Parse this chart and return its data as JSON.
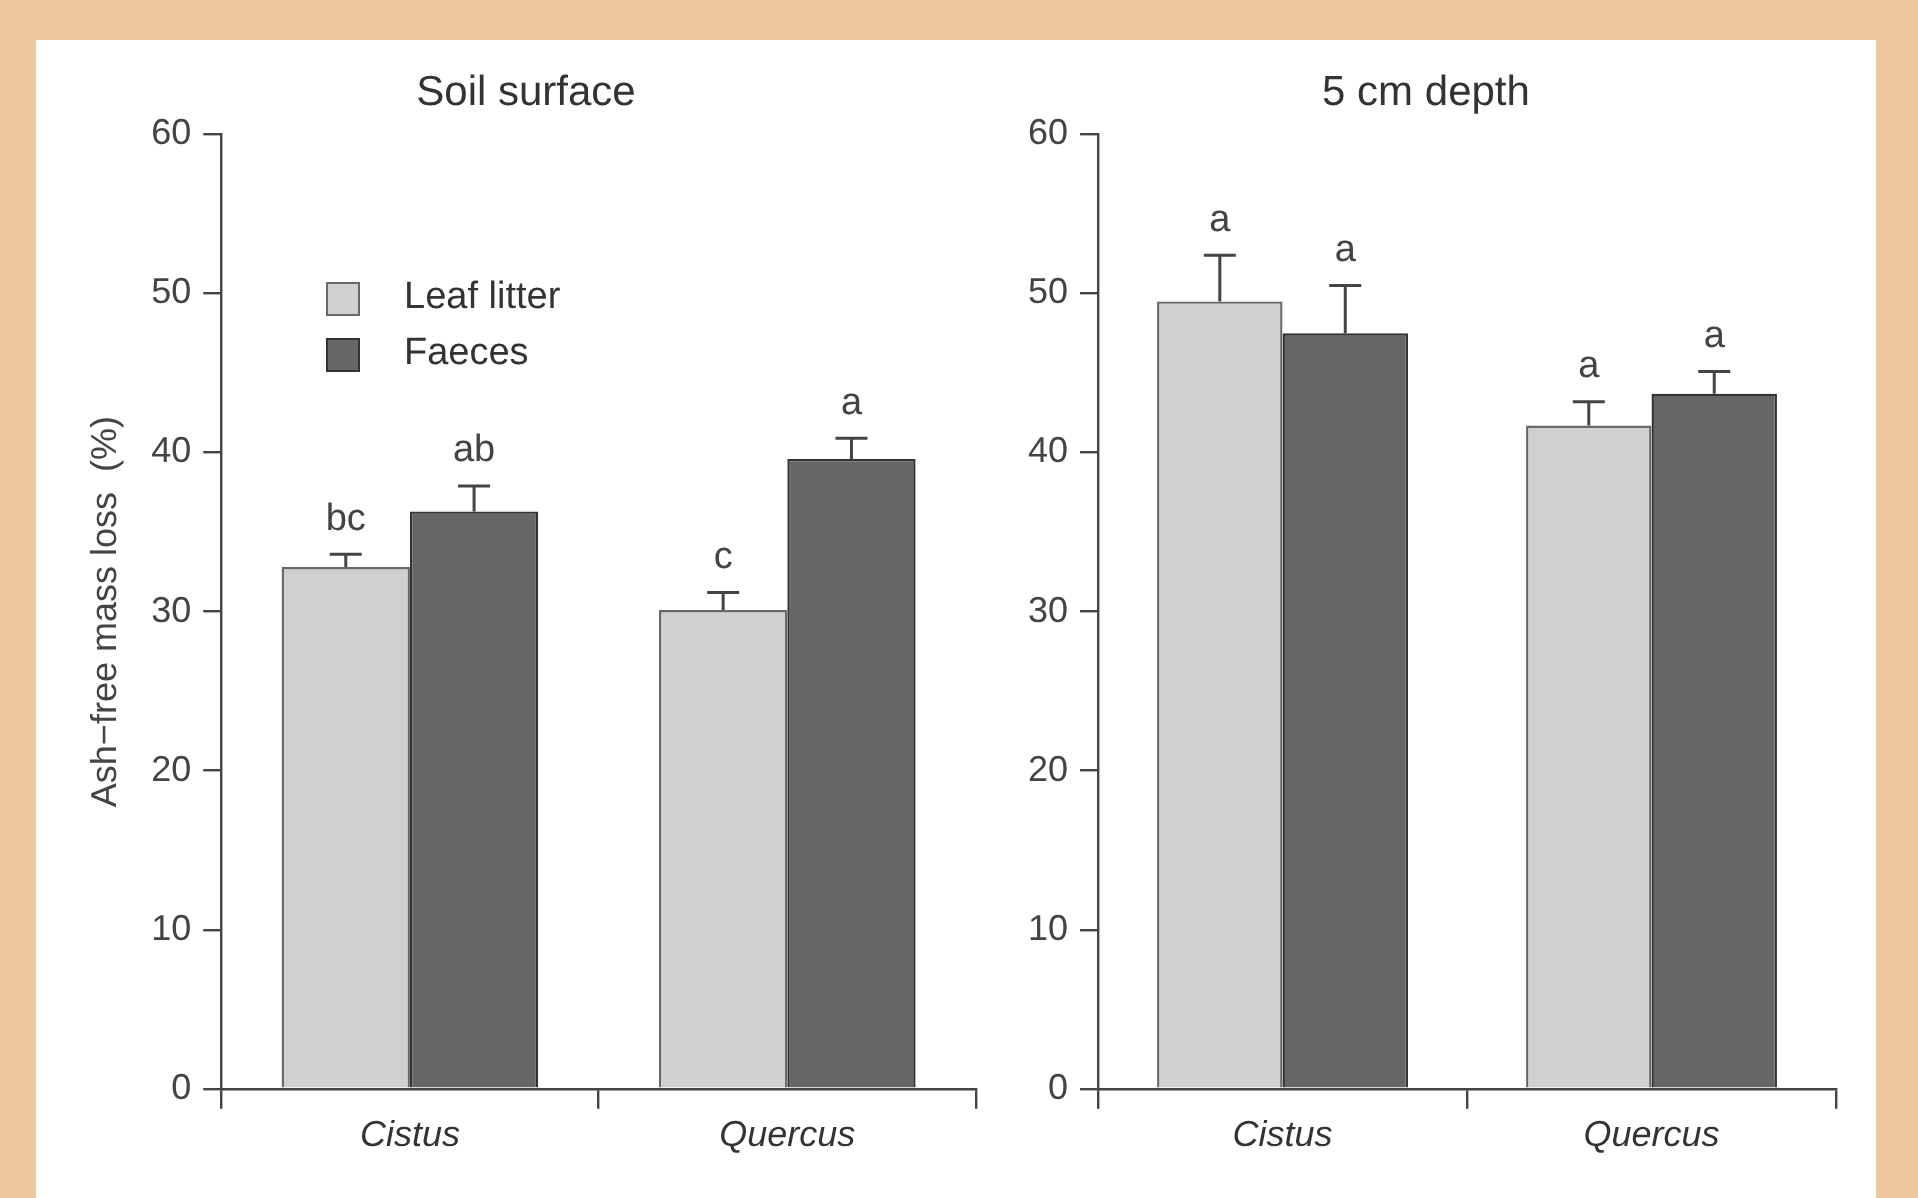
{
  "chart_data": [
    {
      "type": "bar",
      "title": "Soil surface",
      "ylabel": "Ash−free mass loss  (%)",
      "categories": [
        "Cistus",
        "Quercus"
      ],
      "ylim": [
        0,
        60
      ],
      "yticks": [
        0,
        10,
        20,
        30,
        40,
        50,
        60
      ],
      "grid": false,
      "legend": "top left",
      "series": [
        {
          "name": "Leaf litter",
          "color": "#d0d0d0",
          "values": [
            32.8,
            30.1
          ],
          "errors": [
            [
              32.8,
              33.6
            ],
            [
              30.1,
              31.2
            ]
          ]
        },
        {
          "name": "Faeces",
          "color": "#666666",
          "values": [
            36.3,
            39.6
          ],
          "errors": [
            [
              36.3,
              37.9
            ],
            [
              39.6,
              40.9
            ]
          ]
        }
      ],
      "annotations": [
        "bc",
        "ab",
        "c",
        "a"
      ]
    },
    {
      "type": "bar",
      "title": "5 cm depth",
      "categories": [
        "Cistus",
        "Quercus"
      ],
      "ylim": [
        0,
        60
      ],
      "yticks": [
        0,
        10,
        20,
        30,
        40,
        50,
        60
      ],
      "grid": false,
      "legend": false,
      "series": [
        {
          "color": "#d0d0d0",
          "values": [
            49.5,
            41.7
          ],
          "errors": [
            [
              49.5,
              52.4
            ],
            [
              41.7,
              43.2
            ]
          ]
        },
        {
          "color": "#666666",
          "values": [
            47.5,
            43.7
          ],
          "errors": [
            [
              47.5,
              50.5
            ],
            [
              43.7,
              45.1
            ]
          ]
        }
      ],
      "annotations": [
        "a",
        "a",
        "a",
        "a"
      ]
    }
  ]
}
